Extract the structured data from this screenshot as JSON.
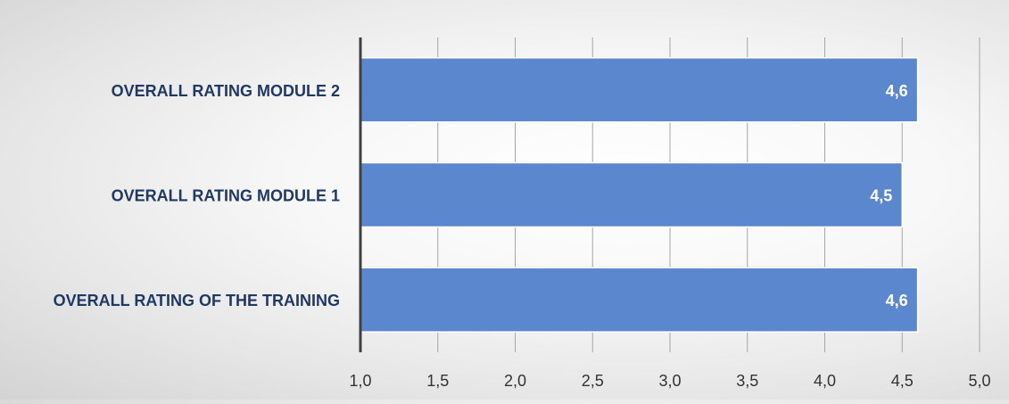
{
  "chart_data": {
    "type": "bar",
    "orientation": "horizontal",
    "categories": [
      "OVERALL RATING MODULE 2",
      "OVERALL RATING MODULE 1",
      "OVERALL RATING OF THE TRAINING"
    ],
    "values": [
      4.6,
      4.5,
      4.6
    ],
    "data_labels": [
      "4,6",
      "4,5",
      "4,6"
    ],
    "title": "",
    "xlabel": "",
    "ylabel": "",
    "xlim": [
      1.0,
      5.0
    ],
    "x_ticks": [
      "1,0",
      "1,5",
      "2,0",
      "2,5",
      "3,0",
      "3,5",
      "4,0",
      "4,5",
      "5,0"
    ],
    "grid": "vertical",
    "legend": "none",
    "colors": {
      "bar": "#5b87cf",
      "bar_border": "#ffffff",
      "data_label": "#ffffff",
      "category_label": "#1f3864",
      "tick_label": "#333333",
      "gridline": "#a6a6a6",
      "axis_line": "#404040"
    }
  }
}
